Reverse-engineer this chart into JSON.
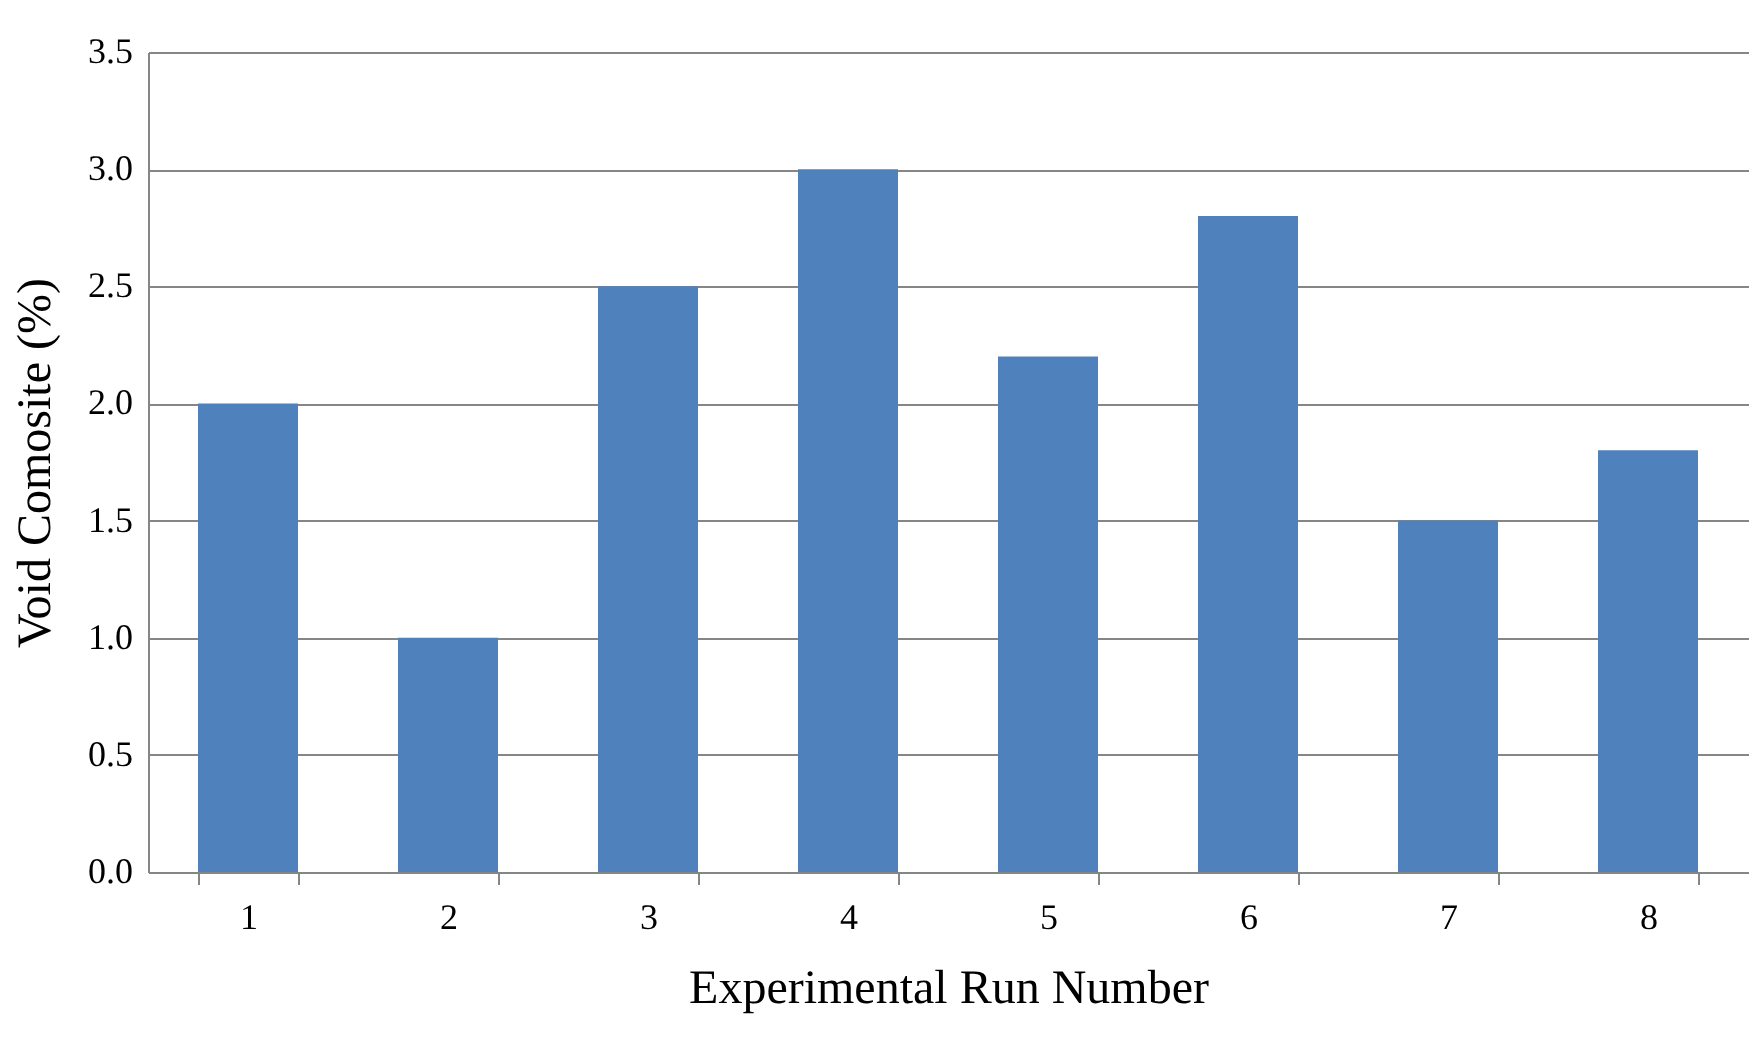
{
  "chart_data": {
    "type": "bar",
    "xlabel": "Experimental Run Number",
    "ylabel": "Void Comosite (%)",
    "categories": [
      "1",
      "2",
      "3",
      "4",
      "5",
      "6",
      "7",
      "8"
    ],
    "values": [
      2.0,
      1.0,
      2.5,
      3.0,
      2.2,
      2.8,
      1.5,
      1.8
    ],
    "color": "#4f81bd",
    "ylim": [
      0,
      3.5
    ],
    "yticks": [
      {
        "value": 0,
        "label": "0.0"
      },
      {
        "value": 0.5,
        "label": "0.5"
      },
      {
        "value": 1,
        "label": "1.0"
      },
      {
        "value": 1.5,
        "label": "1.5"
      },
      {
        "value": 2,
        "label": "2.0"
      },
      {
        "value": 2.5,
        "label": "2.5"
      },
      {
        "value": 3,
        "label": "3.0"
      },
      {
        "value": 3.5,
        "label": "3.5"
      }
    ],
    "grid": "y"
  }
}
